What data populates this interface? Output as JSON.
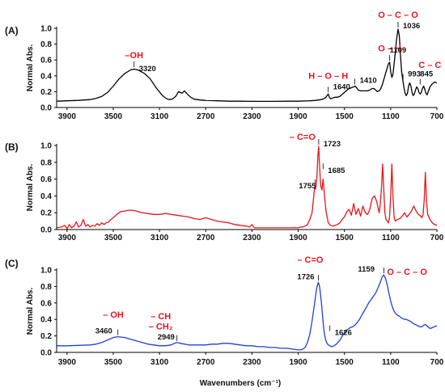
{
  "chart_data": [
    {
      "type": "line",
      "panel": "(A)",
      "color": "#000000",
      "ylabel": "Normal Abs.",
      "xlabel": "",
      "x_reversed": true,
      "xlim": [
        3990,
        700
      ],
      "ylim": [
        0,
        1.0
      ],
      "yticks": [
        "0.0",
        "0.2",
        "0.4",
        "0.6",
        "0.8",
        "1.0"
      ],
      "xticks": [
        3900,
        3500,
        3100,
        2700,
        2300,
        1900,
        1500,
        1100,
        700
      ],
      "series": [
        {
          "x": [
            3990,
            3900,
            3800,
            3700,
            3650,
            3600,
            3550,
            3500,
            3450,
            3400,
            3350,
            3320,
            3280,
            3230,
            3180,
            3130,
            3080,
            3050,
            3020,
            2990,
            2960,
            2935,
            2905,
            2885,
            2860,
            2830,
            2800,
            2750,
            2700,
            2600,
            2500,
            2400,
            2300,
            2200,
            2100,
            2000,
            1900,
            1800,
            1750,
            1700,
            1680,
            1660,
            1650,
            1640,
            1630,
            1620,
            1600,
            1580,
            1560,
            1540,
            1500,
            1470,
            1440,
            1420,
            1410,
            1395,
            1380,
            1360,
            1340,
            1320,
            1300,
            1280,
            1260,
            1245,
            1230,
            1215,
            1200,
            1185,
            1170,
            1160,
            1150,
            1140,
            1130,
            1120,
            1109,
            1100,
            1090,
            1080,
            1070,
            1060,
            1050,
            1036,
            1025,
            1015,
            1005,
            993,
            985,
            975,
            965,
            955,
            945,
            935,
            925,
            915,
            905,
            895,
            885,
            875,
            865,
            855,
            845,
            835,
            825,
            815,
            805,
            795,
            785,
            775,
            760,
            740,
            720,
            700
          ],
          "y": [
            0.08,
            0.085,
            0.09,
            0.1,
            0.115,
            0.14,
            0.19,
            0.27,
            0.36,
            0.43,
            0.475,
            0.485,
            0.47,
            0.43,
            0.36,
            0.25,
            0.16,
            0.12,
            0.1,
            0.105,
            0.14,
            0.2,
            0.18,
            0.21,
            0.17,
            0.13,
            0.105,
            0.095,
            0.09,
            0.085,
            0.08,
            0.08,
            0.078,
            0.078,
            0.078,
            0.08,
            0.08,
            0.085,
            0.09,
            0.1,
            0.11,
            0.13,
            0.15,
            0.17,
            0.13,
            0.11,
            0.12,
            0.13,
            0.13,
            0.14,
            0.19,
            0.23,
            0.25,
            0.26,
            0.27,
            0.25,
            0.22,
            0.21,
            0.21,
            0.21,
            0.21,
            0.22,
            0.24,
            0.24,
            0.22,
            0.2,
            0.21,
            0.24,
            0.3,
            0.35,
            0.4,
            0.45,
            0.5,
            0.55,
            0.57,
            0.45,
            0.38,
            0.42,
            0.55,
            0.7,
            0.85,
            0.99,
            0.9,
            0.65,
            0.45,
            0.33,
            0.25,
            0.18,
            0.15,
            0.18,
            0.27,
            0.31,
            0.27,
            0.19,
            0.15,
            0.17,
            0.22,
            0.26,
            0.24,
            0.19,
            0.17,
            0.19,
            0.24,
            0.27,
            0.23,
            0.18,
            0.16,
            0.2,
            0.26,
            0.3,
            0.32,
            0.31
          ]
        }
      ],
      "annotations": [
        {
          "text": "–OH",
          "color": "red",
          "x": 3320,
          "y": 0.56
        },
        {
          "text": "3320",
          "color": "black",
          "x": 3320,
          "y": 0.49
        },
        {
          "text": "H – O – H",
          "color": "red",
          "x": 1640,
          "y": 0.32
        },
        {
          "text": "1640",
          "color": "black",
          "x": 1640,
          "y": 0.17
        },
        {
          "text": "1410",
          "color": "black",
          "x": 1410,
          "y": 0.27
        },
        {
          "text": "O – H",
          "color": "red",
          "x": 1109,
          "y": 0.67
        },
        {
          "text": "1109",
          "color": "black",
          "x": 1109,
          "y": 0.57
        },
        {
          "text": "O – C – O",
          "color": "red",
          "x": 1036,
          "y": 1.05
        },
        {
          "text": "1036",
          "color": "black",
          "x": 1036,
          "y": 0.99
        },
        {
          "text": "993",
          "color": "black",
          "x": 993,
          "y": 0.33
        },
        {
          "text": "C – C",
          "color": "red",
          "x": 845,
          "y": 0.5
        },
        {
          "text": "845",
          "color": "black",
          "x": 845,
          "y": 0.27
        }
      ]
    },
    {
      "type": "line",
      "panel": "(B)",
      "color": "#e8141c",
      "ylabel": "Normal Abs.",
      "xlabel": "",
      "x_reversed": true,
      "xlim": [
        3990,
        700
      ],
      "ylim": [
        0,
        1.0
      ],
      "yticks": [
        "0.0",
        "0.2",
        "0.4",
        "0.6",
        "0.8",
        "1.0"
      ],
      "xticks": [
        3900,
        3500,
        3100,
        2700,
        2300,
        1900,
        1500,
        1100,
        700
      ],
      "series": [
        {
          "x": [
            3990,
            3950,
            3920,
            3900,
            3880,
            3860,
            3840,
            3820,
            3800,
            3780,
            3760,
            3740,
            3720,
            3700,
            3680,
            3660,
            3640,
            3620,
            3600,
            3580,
            3560,
            3540,
            3520,
            3500,
            3470,
            3440,
            3400,
            3370,
            3340,
            3300,
            3250,
            3200,
            3150,
            3100,
            3050,
            3000,
            2950,
            2900,
            2850,
            2800,
            2750,
            2700,
            2650,
            2600,
            2550,
            2500,
            2450,
            2400,
            2350,
            2320,
            2300,
            2280,
            2250,
            2200,
            2150,
            2100,
            2050,
            2000,
            1950,
            1900,
            1880,
            1860,
            1840,
            1820,
            1800,
            1780,
            1770,
            1760,
            1755,
            1750,
            1740,
            1730,
            1723,
            1715,
            1705,
            1695,
            1685,
            1675,
            1660,
            1640,
            1620,
            1600,
            1580,
            1560,
            1540,
            1520,
            1500,
            1480,
            1460,
            1440,
            1420,
            1400,
            1380,
            1360,
            1340,
            1320,
            1300,
            1280,
            1260,
            1240,
            1220,
            1200,
            1190,
            1180,
            1170,
            1160,
            1150,
            1140,
            1130,
            1120,
            1110,
            1100,
            1090,
            1080,
            1070,
            1060,
            1040,
            1020,
            1000,
            980,
            960,
            940,
            920,
            900,
            880,
            860,
            840,
            830,
            820,
            810,
            800,
            790,
            780,
            760,
            740,
            720,
            700
          ],
          "y": [
            0.02,
            0.03,
            0.05,
            0.01,
            0.06,
            0.02,
            0.04,
            0.09,
            0.03,
            0.05,
            0.12,
            0.04,
            0.06,
            0.03,
            0.05,
            0.04,
            0.07,
            0.05,
            0.08,
            0.06,
            0.08,
            0.09,
            0.12,
            0.14,
            0.18,
            0.21,
            0.22,
            0.23,
            0.23,
            0.22,
            0.2,
            0.19,
            0.18,
            0.18,
            0.19,
            0.18,
            0.17,
            0.16,
            0.15,
            0.13,
            0.12,
            0.14,
            0.12,
            0.1,
            0.09,
            0.08,
            0.06,
            0.05,
            0.04,
            0.03,
            0.06,
            0.02,
            0.02,
            0.02,
            0.02,
            0.02,
            0.02,
            0.02,
            0.02,
            0.02,
            0.03,
            0.03,
            0.04,
            0.06,
            0.12,
            0.2,
            0.33,
            0.48,
            0.51,
            0.48,
            0.58,
            0.88,
            0.99,
            0.75,
            0.52,
            0.47,
            0.6,
            0.45,
            0.22,
            0.08,
            0.05,
            0.04,
            0.05,
            0.06,
            0.08,
            0.12,
            0.15,
            0.21,
            0.24,
            0.17,
            0.31,
            0.18,
            0.25,
            0.16,
            0.28,
            0.2,
            0.18,
            0.24,
            0.37,
            0.4,
            0.33,
            0.2,
            0.3,
            0.48,
            0.78,
            0.48,
            0.2,
            0.12,
            0.1,
            0.08,
            0.14,
            0.4,
            0.78,
            0.4,
            0.15,
            0.1,
            0.12,
            0.13,
            0.16,
            0.2,
            0.15,
            0.18,
            0.22,
            0.28,
            0.22,
            0.18,
            0.16,
            0.14,
            0.18,
            0.35,
            0.68,
            0.35,
            0.18,
            0.12,
            0.08,
            0.06,
            0.05
          ]
        }
      ],
      "annotations": [
        {
          "text": "– C=O",
          "color": "red",
          "x": 1723,
          "y": 1.05
        },
        {
          "text": "1723",
          "color": "black",
          "x": 1723,
          "y": 0.99
        },
        {
          "text": "1685",
          "color": "black",
          "x": 1685,
          "y": 0.7
        },
        {
          "text": "1755",
          "color": "black",
          "x": 1755,
          "y": 0.51
        }
      ]
    },
    {
      "type": "line",
      "panel": "(C)",
      "color": "#1f3fd8",
      "ylabel": "Normal Abs.",
      "xlabel": "Wavenumbers (cm⁻¹)",
      "x_reversed": true,
      "xlim": [
        3990,
        700
      ],
      "ylim": [
        0,
        1.0
      ],
      "yticks": [
        "0.0",
        "0.2",
        "0.4",
        "0.6",
        "0.8",
        "1.0"
      ],
      "xticks": [
        3900,
        3500,
        3100,
        2700,
        2300,
        1900,
        1500,
        1100,
        700
      ],
      "series": [
        {
          "x": [
            3990,
            3900,
            3800,
            3700,
            3650,
            3600,
            3550,
            3500,
            3460,
            3400,
            3350,
            3300,
            3250,
            3200,
            3150,
            3100,
            3050,
            3000,
            2970,
            2949,
            2920,
            2880,
            2850,
            2800,
            2750,
            2700,
            2650,
            2600,
            2550,
            2500,
            2450,
            2400,
            2350,
            2300,
            2250,
            2200,
            2150,
            2100,
            2050,
            2000,
            1950,
            1900,
            1880,
            1860,
            1840,
            1820,
            1800,
            1780,
            1760,
            1740,
            1726,
            1715,
            1700,
            1690,
            1680,
            1670,
            1660,
            1650,
            1640,
            1626,
            1610,
            1590,
            1570,
            1550,
            1530,
            1510,
            1490,
            1470,
            1450,
            1430,
            1410,
            1390,
            1370,
            1350,
            1330,
            1310,
            1290,
            1270,
            1250,
            1230,
            1210,
            1190,
            1175,
            1159,
            1145,
            1130,
            1115,
            1100,
            1085,
            1070,
            1055,
            1040,
            1025,
            1010,
            995,
            980,
            965,
            950,
            935,
            920,
            905,
            890,
            875,
            860,
            845,
            830,
            815,
            800,
            785,
            770,
            755,
            740,
            725,
            710,
            700
          ],
          "y": [
            0.08,
            0.08,
            0.085,
            0.09,
            0.1,
            0.12,
            0.15,
            0.18,
            0.19,
            0.18,
            0.16,
            0.14,
            0.12,
            0.1,
            0.09,
            0.08,
            0.08,
            0.09,
            0.11,
            0.12,
            0.11,
            0.1,
            0.09,
            0.09,
            0.09,
            0.09,
            0.1,
            0.1,
            0.11,
            0.11,
            0.1,
            0.09,
            0.08,
            0.08,
            0.07,
            0.07,
            0.06,
            0.06,
            0.05,
            0.05,
            0.04,
            0.03,
            0.03,
            0.04,
            0.06,
            0.12,
            0.22,
            0.38,
            0.58,
            0.78,
            0.85,
            0.8,
            0.62,
            0.45,
            0.3,
            0.2,
            0.14,
            0.11,
            0.09,
            0.08,
            0.07,
            0.08,
            0.1,
            0.13,
            0.17,
            0.22,
            0.26,
            0.28,
            0.3,
            0.31,
            0.33,
            0.36,
            0.4,
            0.45,
            0.5,
            0.55,
            0.6,
            0.64,
            0.68,
            0.72,
            0.78,
            0.85,
            0.91,
            0.94,
            0.9,
            0.82,
            0.72,
            0.62,
            0.55,
            0.5,
            0.47,
            0.45,
            0.44,
            0.42,
            0.41,
            0.4,
            0.4,
            0.39,
            0.38,
            0.37,
            0.35,
            0.34,
            0.33,
            0.32,
            0.31,
            0.31,
            0.33,
            0.34,
            0.32,
            0.3,
            0.29,
            0.3,
            0.31,
            0.32,
            0.32
          ]
        }
      ],
      "annotations": [
        {
          "text": "– OH",
          "color": "red",
          "x": 3500,
          "y": 0.42
        },
        {
          "text": "3460",
          "color": "black",
          "x": 3460,
          "y": 0.19
        },
        {
          "text": "– CH",
          "color": "red",
          "x": 2949,
          "y": 0.4
        },
        {
          "text": "– CH₂",
          "color": "red",
          "x": 2949,
          "y": 0.28
        },
        {
          "text": "2949",
          "color": "black",
          "x": 2949,
          "y": 0.12
        },
        {
          "text": "– C=O",
          "color": "red",
          "x": 1726,
          "y": 1.05
        },
        {
          "text": "1726",
          "color": "black",
          "x": 1726,
          "y": 0.85
        },
        {
          "text": "1626",
          "color": "black",
          "x": 1626,
          "y": 0.24
        },
        {
          "text": "1159",
          "color": "black",
          "x": 1159,
          "y": 0.94
        },
        {
          "text": "O – C – O",
          "color": "red",
          "x": 1000,
          "y": 0.94
        }
      ]
    }
  ]
}
